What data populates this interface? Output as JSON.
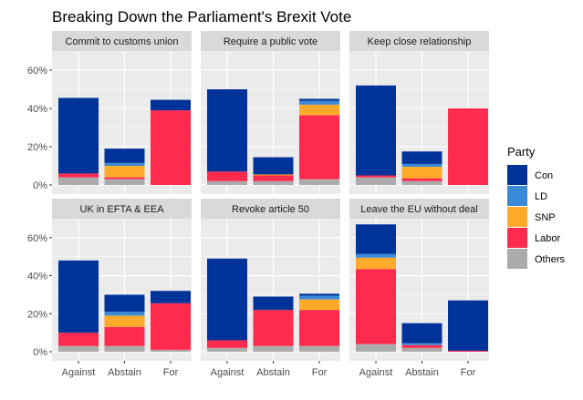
{
  "chart_data": {
    "type": "bar",
    "stacked": true,
    "title": "Breaking Down the Parliament's Brexit Vote",
    "xlabel": "",
    "ylabel": "",
    "ylim": [
      0,
      0.7
    ],
    "yticks": [
      0,
      0.2,
      0.4,
      0.6
    ],
    "ytick_labels": [
      "0%",
      "20%",
      "40%",
      "60%"
    ],
    "categories": [
      "Against",
      "Abstain",
      "For"
    ],
    "legend": {
      "title": "Party",
      "position": "right",
      "entries": [
        "Con",
        "LD",
        "SNP",
        "Labor",
        "Others"
      ]
    },
    "colors": {
      "Con": "#00339A",
      "LD": "#3B8AD8",
      "SNP": "#FFAA2A",
      "Labor": "#FF2B4F",
      "Others": "#ABABAB"
    },
    "grid": true,
    "panel_background": "#EBEBEB",
    "strip_background": "#D9D9D9",
    "facets": [
      {
        "title": "Commit to customs union",
        "values": {
          "Against": {
            "Others": 0.04,
            "Labor": 0.02,
            "SNP": 0.0,
            "LD": 0.0,
            "Con": 0.395
          },
          "Abstain": {
            "Others": 0.03,
            "Labor": 0.01,
            "SNP": 0.06,
            "LD": 0.015,
            "Con": 0.075
          },
          "For": {
            "Others": 0.0,
            "Labor": 0.39,
            "SNP": 0.0,
            "LD": 0.0,
            "Con": 0.055
          }
        }
      },
      {
        "title": "Require a public vote",
        "values": {
          "Against": {
            "Others": 0.02,
            "Labor": 0.05,
            "SNP": 0.0,
            "LD": 0.0,
            "Con": 0.43
          },
          "Abstain": {
            "Others": 0.02,
            "Labor": 0.03,
            "SNP": 0.005,
            "LD": 0.0,
            "Con": 0.09
          },
          "For": {
            "Others": 0.03,
            "Labor": 0.335,
            "SNP": 0.055,
            "LD": 0.02,
            "Con": 0.01
          }
        }
      },
      {
        "title": "Keep close relationship",
        "values": {
          "Against": {
            "Others": 0.04,
            "Labor": 0.01,
            "SNP": 0.0,
            "LD": 0.0,
            "Con": 0.47
          },
          "Abstain": {
            "Others": 0.02,
            "Labor": 0.015,
            "SNP": 0.06,
            "LD": 0.015,
            "Con": 0.065
          },
          "For": {
            "Others": 0.0,
            "Labor": 0.4,
            "SNP": 0.0,
            "LD": 0.0,
            "Con": 0.0
          }
        }
      },
      {
        "title": "UK in EFTA & EEA",
        "values": {
          "Against": {
            "Others": 0.03,
            "Labor": 0.07,
            "SNP": 0.0,
            "LD": 0.0,
            "Con": 0.38
          },
          "Abstain": {
            "Others": 0.03,
            "Labor": 0.1,
            "SNP": 0.06,
            "LD": 0.02,
            "Con": 0.09
          },
          "For": {
            "Others": 0.01,
            "Labor": 0.245,
            "SNP": 0.0,
            "LD": 0.0,
            "Con": 0.065
          }
        }
      },
      {
        "title": "Revoke article 50",
        "values": {
          "Against": {
            "Others": 0.02,
            "Labor": 0.04,
            "SNP": 0.0,
            "LD": 0.0,
            "Con": 0.43
          },
          "Abstain": {
            "Others": 0.03,
            "Labor": 0.19,
            "SNP": 0.0,
            "LD": 0.0,
            "Con": 0.07
          },
          "For": {
            "Others": 0.03,
            "Labor": 0.19,
            "SNP": 0.055,
            "LD": 0.02,
            "Con": 0.01
          }
        }
      },
      {
        "title": "Leave the EU without deal",
        "values": {
          "Against": {
            "Others": 0.04,
            "Labor": 0.395,
            "SNP": 0.06,
            "LD": 0.02,
            "Con": 0.155
          },
          "Abstain": {
            "Others": 0.02,
            "Labor": 0.015,
            "SNP": 0.0,
            "LD": 0.01,
            "Con": 0.105
          },
          "For": {
            "Others": 0.0,
            "Labor": 0.005,
            "SNP": 0.0,
            "LD": 0.0,
            "Con": 0.265
          }
        }
      }
    ]
  }
}
